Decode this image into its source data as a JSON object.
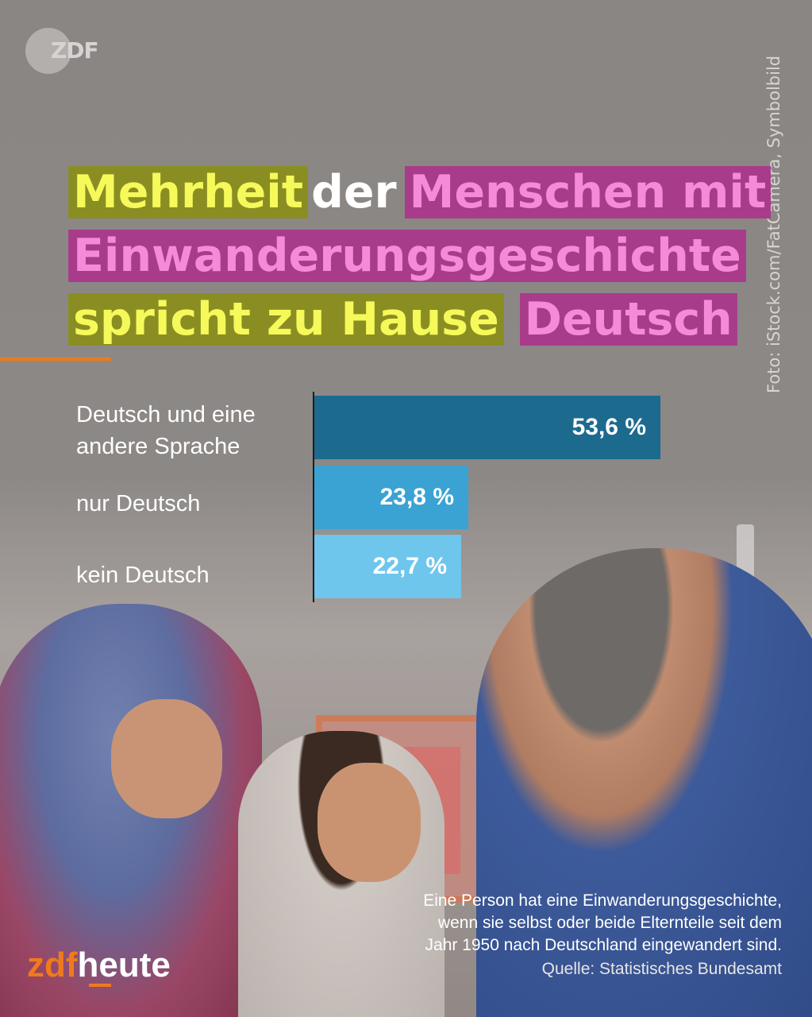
{
  "logo_top": "ZDF",
  "photo_credit": "Foto: iStock.com/FatCamera, Symbolbild",
  "title": {
    "line1": [
      {
        "text": "Mehrheit",
        "style": "yellow"
      },
      {
        "text": "der",
        "style": "plain"
      },
      {
        "text": "Menschen mit",
        "style": "pink"
      }
    ],
    "line2": [
      {
        "text": "Einwanderungsgeschichte",
        "style": "pink"
      }
    ],
    "line3": [
      {
        "text": "spricht zu Hause",
        "style": "yellow"
      },
      {
        "text": "Deutsch",
        "style": "pink"
      }
    ]
  },
  "colors": {
    "accent_orange": "#f07a1c",
    "highlight_yellow_bg": "#8a8e22",
    "highlight_yellow_text": "#f5f95a",
    "highlight_pink_bg": "#a83c8a",
    "highlight_pink_text": "#f48ad8"
  },
  "chart_data": {
    "type": "bar",
    "orientation": "horizontal",
    "categories": [
      "Deutsch und eine andere Sprache",
      "nur Deutsch",
      "kein Deutsch"
    ],
    "category_lines": [
      [
        "Deutsch und eine",
        "andere Sprache"
      ],
      [
        "nur Deutsch"
      ],
      [
        "kein Deutsch"
      ]
    ],
    "values": [
      53.6,
      23.8,
      22.7
    ],
    "value_labels": [
      "53,6 %",
      "23,8 %",
      "22,7 %"
    ],
    "bar_colors": [
      "#1d6a8f",
      "#3aa3d3",
      "#6fc6ec"
    ],
    "unit": "%",
    "grid": false,
    "legend": "none"
  },
  "footnote": {
    "lines": [
      "Eine Person hat eine Einwanderungsgeschichte,",
      "wenn sie selbst oder beide Elternteile seit dem",
      "Jahr 1950 nach Deutschland eingewandert sind."
    ],
    "source": "Quelle: Statistisches Bundesamt"
  },
  "logo_bottom": {
    "part1": "zdf",
    "part2": "heute"
  }
}
